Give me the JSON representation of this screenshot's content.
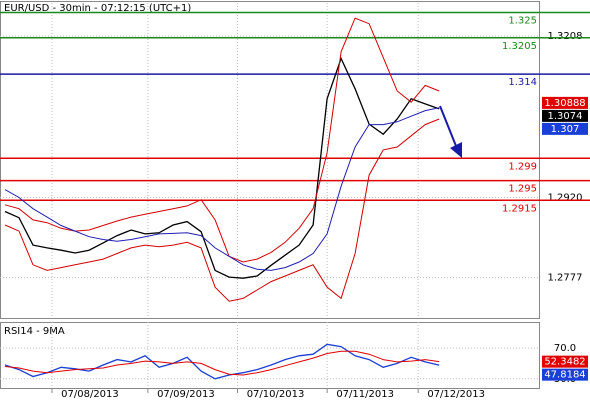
{
  "chart_data": [
    {
      "type": "line",
      "title": "EUR/USD - 30min - 07:12:15 (UTC+1)",
      "x": [
        0,
        1,
        2,
        3,
        4,
        5,
        6,
        7,
        8,
        9,
        10,
        11,
        12,
        13,
        14,
        15,
        16,
        17,
        18,
        19,
        20,
        21,
        22,
        23,
        24,
        25,
        26,
        27,
        28,
        29,
        30,
        31
      ],
      "series": [
        {
          "color": "#000000",
          "values": [
            1.2895,
            1.2884,
            1.2835,
            1.283,
            1.2826,
            1.2821,
            1.2826,
            1.2839,
            1.2852,
            1.2862,
            1.2855,
            1.2857,
            1.2871,
            1.2877,
            1.2859,
            1.279,
            1.2778,
            1.2776,
            1.278,
            1.2799,
            1.2817,
            1.2835,
            1.2871,
            1.3096,
            1.3168,
            1.3114,
            1.3051,
            1.3033,
            1.306,
            1.3096,
            1.3087,
            1.3078
          ]
        },
        {
          "color": "#d40000",
          "values": [
            1.2907,
            1.29,
            1.288,
            1.2875,
            1.2865,
            1.286,
            1.2862,
            1.287,
            1.2878,
            1.2885,
            1.289,
            1.2895,
            1.29,
            1.2905,
            1.2916,
            1.288,
            1.2815,
            1.2805,
            1.281,
            1.2822,
            1.284,
            1.2865,
            1.29,
            1.3,
            1.318,
            1.324,
            1.323,
            1.317,
            1.311,
            1.309,
            1.312,
            1.311
          ]
        },
        {
          "color": "#d40000",
          "values": [
            1.2871,
            1.286,
            1.28,
            1.279,
            1.2795,
            1.28,
            1.2805,
            1.281,
            1.282,
            1.283,
            1.2835,
            1.2832,
            1.2835,
            1.284,
            1.283,
            1.276,
            1.2735,
            1.274,
            1.2755,
            1.277,
            1.278,
            1.279,
            1.28,
            1.276,
            1.274,
            1.282,
            1.296,
            1.3005,
            1.301,
            1.303,
            1.305,
            1.306
          ]
        },
        {
          "color": "#1f1fb4",
          "values": [
            1.2934,
            1.292,
            1.29,
            1.2885,
            1.287,
            1.286,
            1.285,
            1.2845,
            1.2842,
            1.2845,
            1.285,
            1.2855,
            1.2856,
            1.2857,
            1.2852,
            1.283,
            1.2815,
            1.28,
            1.2792,
            1.279,
            1.2795,
            1.2805,
            1.282,
            1.2855,
            1.294,
            1.301,
            1.305,
            1.305,
            1.3055,
            1.3065,
            1.3075,
            1.308
          ]
        }
      ],
      "xlim": [
        -0.36,
        38.2
      ],
      "ylim": [
        1.2705,
        1.3267
      ],
      "yticks": [
        1.3208,
        {
          "value": 1.292,
          "label": "1.2920"
        },
        1.2777
      ],
      "grid": true,
      "levels": [
        {
          "value": 1.325,
          "color": "#1a8a1a"
        },
        {
          "value": 1.3205,
          "color": "#1a8a1a"
        },
        {
          "value": 1.314,
          "color": "#1a1aa8"
        },
        {
          "value": 1.299,
          "color": "#e00000"
        },
        {
          "value": 1.295,
          "color": "#e00000"
        },
        {
          "value": 1.2915,
          "color": "#e00000"
        }
      ],
      "price_labels": [
        {
          "value": 1.30888,
          "color": "#e00000"
        },
        {
          "value": 1.3074,
          "color": "#000000"
        },
        {
          "value": 1.307,
          "color": "#1a3fd6"
        }
      ]
    },
    {
      "type": "line",
      "title": "RSI14 - 9MA",
      "x": [
        0,
        1,
        2,
        3,
        4,
        5,
        6,
        7,
        8,
        9,
        10,
        11,
        12,
        13,
        14,
        15,
        16,
        17,
        18,
        19,
        20,
        21,
        22,
        23,
        24,
        25,
        26,
        27,
        28,
        29,
        30,
        31
      ],
      "series": [
        {
          "color": "#1a3fd6",
          "values": [
            48,
            42,
            33,
            38,
            45,
            43,
            40,
            48,
            55,
            52,
            60,
            45,
            50,
            58,
            40,
            30,
            35,
            38,
            42,
            48,
            55,
            60,
            62,
            75,
            72,
            60,
            55,
            45,
            50,
            58,
            52,
            47.8184
          ]
        },
        {
          "color": "#e00000",
          "values": [
            46,
            44,
            40,
            38,
            40,
            42,
            43,
            44,
            48,
            50,
            53,
            52,
            50,
            52,
            50,
            42,
            36,
            35,
            38,
            42,
            47,
            52,
            57,
            63,
            66,
            66,
            62,
            55,
            52,
            53,
            55,
            52.3482
          ]
        }
      ],
      "xlim": [
        -0.36,
        38.2
      ],
      "ylim": [
        18,
        104
      ],
      "yticks": [
        {
          "value": 30,
          "label": "30.0"
        },
        {
          "value": 70,
          "label": "70.0"
        }
      ],
      "xticks": [
        {
          "value": 3.35,
          "label": "07/08/2013"
        },
        {
          "value": 10.2,
          "label": "07/09/2013"
        },
        {
          "value": 16.6,
          "label": "07/10/2013"
        },
        {
          "value": 23.0,
          "label": "07/11/2013"
        },
        {
          "value": 29.5,
          "label": "07/12/2013"
        }
      ]
    }
  ]
}
